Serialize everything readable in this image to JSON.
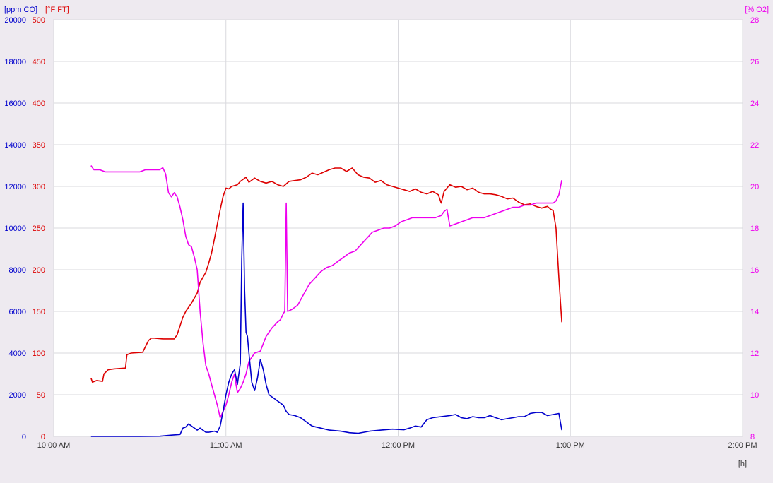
{
  "chart_data": {
    "type": "line",
    "x_unit_label": "[h]",
    "x_ticks": [
      "10:00 AM",
      "11:00 AM",
      "12:00 PM",
      "1:00 PM",
      "2:00 PM"
    ],
    "x_range_minutes": [
      0,
      240
    ],
    "axes": {
      "co": {
        "label": "[ppm CO]",
        "color": "#0000cc",
        "min": 0,
        "max": 20000,
        "ticks": [
          "0",
          "2000",
          "4000",
          "6000",
          "8000",
          "10000",
          "12000",
          "14000",
          "16000",
          "18000",
          "20000"
        ]
      },
      "ft": {
        "label": "[°F FT]",
        "color": "#dd0000",
        "min": 0,
        "max": 500,
        "ticks": [
          "0",
          "50",
          "100",
          "150",
          "200",
          "250",
          "300",
          "350",
          "400",
          "450",
          "500"
        ]
      },
      "o2": {
        "label": "[% O2]",
        "color": "#ee00ee",
        "min": 8,
        "max": 28,
        "ticks": [
          "8",
          "10",
          "12",
          "14",
          "16",
          "18",
          "20",
          "22",
          "24",
          "26",
          "28"
        ]
      }
    },
    "grid": true,
    "series": [
      {
        "name": "°F FT",
        "axis": "ft",
        "color": "#dd0000",
        "points": [
          [
            13,
            70
          ],
          [
            13.5,
            65
          ],
          [
            15,
            67
          ],
          [
            17,
            66
          ],
          [
            17.5,
            75
          ],
          [
            19,
            80
          ],
          [
            21,
            81
          ],
          [
            25,
            82
          ],
          [
            25.5,
            98
          ],
          [
            27,
            100
          ],
          [
            31,
            101
          ],
          [
            32,
            108
          ],
          [
            33,
            115
          ],
          [
            34,
            118
          ],
          [
            35,
            118
          ],
          [
            38,
            117
          ],
          [
            42,
            117
          ],
          [
            43,
            122
          ],
          [
            45,
            143
          ],
          [
            46,
            150
          ],
          [
            48,
            160
          ],
          [
            50,
            172
          ],
          [
            51,
            185
          ],
          [
            53,
            197
          ],
          [
            54,
            208
          ],
          [
            55,
            220
          ],
          [
            56,
            237
          ],
          [
            57,
            255
          ],
          [
            58,
            272
          ],
          [
            59,
            288
          ],
          [
            60,
            298
          ],
          [
            61,
            297
          ],
          [
            62,
            300
          ],
          [
            64,
            302
          ],
          [
            65,
            306
          ],
          [
            67,
            311
          ],
          [
            68,
            305
          ],
          [
            70,
            310
          ],
          [
            72,
            306
          ],
          [
            74,
            304
          ],
          [
            76,
            306
          ],
          [
            78,
            302
          ],
          [
            80,
            300
          ],
          [
            82,
            306
          ],
          [
            84,
            307
          ],
          [
            86,
            308
          ],
          [
            88,
            311
          ],
          [
            90,
            316
          ],
          [
            92,
            314
          ],
          [
            94,
            317
          ],
          [
            96,
            320
          ],
          [
            98,
            322
          ],
          [
            100,
            322
          ],
          [
            102,
            318
          ],
          [
            104,
            322
          ],
          [
            106,
            314
          ],
          [
            108,
            311
          ],
          [
            110,
            310
          ],
          [
            112,
            305
          ],
          [
            114,
            307
          ],
          [
            116,
            302
          ],
          [
            118,
            300
          ],
          [
            120,
            298
          ],
          [
            122,
            296
          ],
          [
            124,
            294
          ],
          [
            126,
            297
          ],
          [
            128,
            293
          ],
          [
            130,
            291
          ],
          [
            132,
            294
          ],
          [
            134,
            290
          ],
          [
            135,
            280
          ],
          [
            136,
            294
          ],
          [
            138,
            302
          ],
          [
            140,
            299
          ],
          [
            142,
            300
          ],
          [
            144,
            296
          ],
          [
            146,
            298
          ],
          [
            148,
            293
          ],
          [
            150,
            291
          ],
          [
            152,
            291
          ],
          [
            154,
            290
          ],
          [
            156,
            288
          ],
          [
            158,
            285
          ],
          [
            160,
            286
          ],
          [
            162,
            281
          ],
          [
            164,
            278
          ],
          [
            166,
            279
          ],
          [
            168,
            276
          ],
          [
            170,
            274
          ],
          [
            172,
            276
          ],
          [
            173,
            273
          ],
          [
            174,
            271
          ],
          [
            175,
            250
          ],
          [
            176,
            190
          ],
          [
            177,
            137
          ]
        ]
      },
      {
        "name": "% O2",
        "axis": "o2",
        "color": "#ee00ee",
        "points": [
          [
            13,
            21.0
          ],
          [
            14,
            20.8
          ],
          [
            16,
            20.8
          ],
          [
            18,
            20.7
          ],
          [
            21,
            20.7
          ],
          [
            25,
            20.7
          ],
          [
            30,
            20.7
          ],
          [
            32,
            20.8
          ],
          [
            35,
            20.8
          ],
          [
            37,
            20.8
          ],
          [
            38,
            20.9
          ],
          [
            39,
            20.6
          ],
          [
            40,
            19.7
          ],
          [
            41,
            19.5
          ],
          [
            42,
            19.7
          ],
          [
            43,
            19.5
          ],
          [
            44,
            19.0
          ],
          [
            45,
            18.4
          ],
          [
            46,
            17.6
          ],
          [
            47,
            17.2
          ],
          [
            48,
            17.1
          ],
          [
            49,
            16.6
          ],
          [
            50,
            16.0
          ],
          [
            51,
            14.0
          ],
          [
            52,
            12.5
          ],
          [
            53,
            11.4
          ],
          [
            54,
            11.0
          ],
          [
            55,
            10.5
          ],
          [
            56,
            10.0
          ],
          [
            57,
            9.5
          ],
          [
            58,
            8.9
          ],
          [
            59,
            9.2
          ],
          [
            60,
            9.5
          ],
          [
            61,
            10.0
          ],
          [
            62,
            10.6
          ],
          [
            63,
            11.0
          ],
          [
            63.5,
            10.5
          ],
          [
            64,
            10.1
          ],
          [
            65,
            10.3
          ],
          [
            66,
            10.6
          ],
          [
            67,
            11.0
          ],
          [
            68,
            11.6
          ],
          [
            70,
            12.0
          ],
          [
            72,
            12.1
          ],
          [
            74,
            12.8
          ],
          [
            76,
            13.2
          ],
          [
            78,
            13.5
          ],
          [
            79,
            13.6
          ],
          [
            80,
            13.9
          ],
          [
            80.5,
            14.0
          ],
          [
            81,
            19.2
          ],
          [
            81.5,
            14.0
          ],
          [
            83,
            14.1
          ],
          [
            85,
            14.3
          ],
          [
            87,
            14.8
          ],
          [
            89,
            15.3
          ],
          [
            91,
            15.6
          ],
          [
            93,
            15.9
          ],
          [
            95,
            16.1
          ],
          [
            97,
            16.2
          ],
          [
            99,
            16.4
          ],
          [
            101,
            16.6
          ],
          [
            103,
            16.8
          ],
          [
            105,
            16.9
          ],
          [
            107,
            17.2
          ],
          [
            109,
            17.5
          ],
          [
            111,
            17.8
          ],
          [
            113,
            17.9
          ],
          [
            115,
            18.0
          ],
          [
            117,
            18.0
          ],
          [
            119,
            18.1
          ],
          [
            121,
            18.3
          ],
          [
            123,
            18.4
          ],
          [
            125,
            18.5
          ],
          [
            127,
            18.5
          ],
          [
            129,
            18.5
          ],
          [
            131,
            18.5
          ],
          [
            133,
            18.5
          ],
          [
            135,
            18.6
          ],
          [
            136,
            18.8
          ],
          [
            137,
            18.9
          ],
          [
            138,
            18.1
          ],
          [
            140,
            18.2
          ],
          [
            142,
            18.3
          ],
          [
            144,
            18.4
          ],
          [
            146,
            18.5
          ],
          [
            148,
            18.5
          ],
          [
            150,
            18.5
          ],
          [
            152,
            18.6
          ],
          [
            154,
            18.7
          ],
          [
            156,
            18.8
          ],
          [
            158,
            18.9
          ],
          [
            160,
            19.0
          ],
          [
            162,
            19.0
          ],
          [
            164,
            19.1
          ],
          [
            166,
            19.1
          ],
          [
            168,
            19.2
          ],
          [
            170,
            19.2
          ],
          [
            172,
            19.2
          ],
          [
            174,
            19.2
          ],
          [
            175,
            19.3
          ],
          [
            176,
            19.6
          ],
          [
            177,
            20.3
          ]
        ]
      },
      {
        "name": "ppm CO",
        "axis": "co",
        "color": "#0000cc",
        "points": [
          [
            13,
            0
          ],
          [
            20,
            0
          ],
          [
            30,
            0
          ],
          [
            37,
            10
          ],
          [
            41,
            60
          ],
          [
            44,
            90
          ],
          [
            45,
            400
          ],
          [
            46,
            450
          ],
          [
            47,
            600
          ],
          [
            48,
            500
          ],
          [
            49,
            400
          ],
          [
            50,
            300
          ],
          [
            51,
            400
          ],
          [
            53,
            200
          ],
          [
            54,
            200
          ],
          [
            56,
            250
          ],
          [
            57,
            200
          ],
          [
            58,
            500
          ],
          [
            59,
            1200
          ],
          [
            60,
            2000
          ],
          [
            61,
            2600
          ],
          [
            62,
            3000
          ],
          [
            63,
            3200
          ],
          [
            64,
            2500
          ],
          [
            65,
            3500
          ],
          [
            65.5,
            8500
          ],
          [
            66,
            11200
          ],
          [
            66.5,
            7000
          ],
          [
            67,
            5000
          ],
          [
            67.5,
            4800
          ],
          [
            68,
            4000
          ],
          [
            69,
            2600
          ],
          [
            70,
            2200
          ],
          [
            71,
            2800
          ],
          [
            72,
            3700
          ],
          [
            73,
            3200
          ],
          [
            74,
            2500
          ],
          [
            75,
            2000
          ],
          [
            76,
            1900
          ],
          [
            77,
            1800
          ],
          [
            78,
            1700
          ],
          [
            80,
            1500
          ],
          [
            81,
            1200
          ],
          [
            82,
            1050
          ],
          [
            84,
            1000
          ],
          [
            86,
            900
          ],
          [
            88,
            700
          ],
          [
            90,
            500
          ],
          [
            93,
            400
          ],
          [
            96,
            300
          ],
          [
            100,
            250
          ],
          [
            103,
            180
          ],
          [
            106,
            150
          ],
          [
            108,
            200
          ],
          [
            110,
            250
          ],
          [
            114,
            300
          ],
          [
            118,
            350
          ],
          [
            122,
            320
          ],
          [
            124,
            400
          ],
          [
            126,
            500
          ],
          [
            128,
            450
          ],
          [
            130,
            800
          ],
          [
            132,
            900
          ],
          [
            135,
            950
          ],
          [
            138,
            1000
          ],
          [
            140,
            1050
          ],
          [
            142,
            900
          ],
          [
            144,
            850
          ],
          [
            146,
            950
          ],
          [
            148,
            900
          ],
          [
            150,
            900
          ],
          [
            152,
            1000
          ],
          [
            154,
            900
          ],
          [
            156,
            800
          ],
          [
            158,
            850
          ],
          [
            160,
            900
          ],
          [
            162,
            950
          ],
          [
            164,
            950
          ],
          [
            166,
            1100
          ],
          [
            168,
            1150
          ],
          [
            170,
            1150
          ],
          [
            172,
            1000
          ],
          [
            174,
            1050
          ],
          [
            176,
            1100
          ],
          [
            177,
            300
          ]
        ]
      }
    ]
  }
}
